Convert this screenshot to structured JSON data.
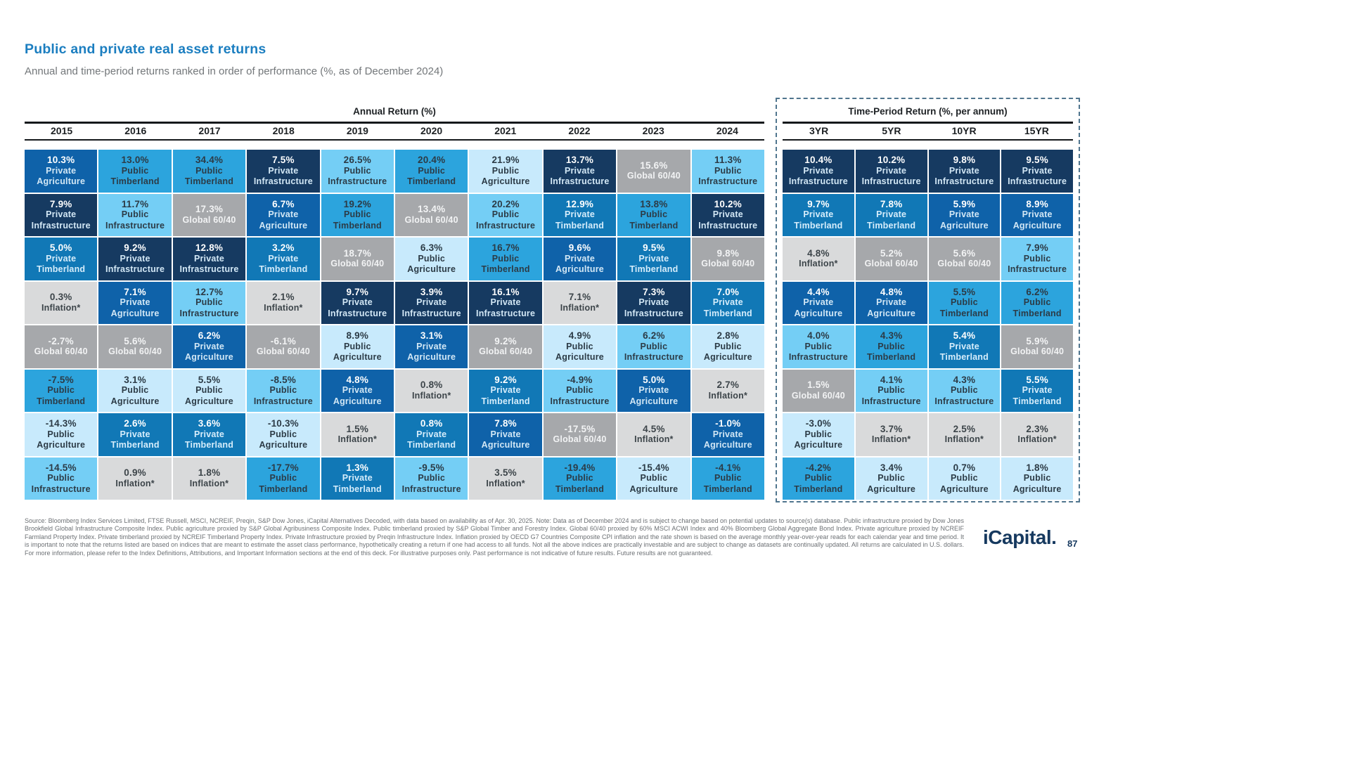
{
  "title": "Public and private real asset returns",
  "subtitle": "Annual and time-period returns ranked in order of performance (%, as of December 2024)",
  "annual_section_label": "Annual Return (%)",
  "time_section_label": "Time-Period Return (%, per annum)",
  "asset_classes": {
    "private_infrastructure": {
      "label": "Private Infrastructure",
      "bg": "#163a61",
      "val_color": "#ffffff",
      "name_color": "#d2e7f5"
    },
    "private_agriculture": {
      "label": "Private Agriculture",
      "bg": "#0f62a9",
      "val_color": "#ffffff",
      "name_color": "#d2e7f5"
    },
    "private_timberland": {
      "label": "Private Timberland",
      "bg": "#1178b6",
      "val_color": "#ffffff",
      "name_color": "#d6edfb"
    },
    "public_timberland": {
      "label": "Public Timberland",
      "bg": "#2ca4dd",
      "val_color": "#2c3b46",
      "name_color": "#2c3b46"
    },
    "public_infrastructure": {
      "label": "Public Infrastructure",
      "bg": "#74cef5",
      "val_color": "#2c3b46",
      "name_color": "#2c3b46"
    },
    "public_agriculture": {
      "label": "Public Agriculture",
      "bg": "#c8eafc",
      "val_color": "#2c3b46",
      "name_color": "#2c3b46"
    },
    "global_6040": {
      "label": "Global 60/40",
      "bg": "#a6a8ab",
      "val_color": "#f2f3f4",
      "name_color": "#f2f3f4"
    },
    "inflation": {
      "label": "Inflation*",
      "bg": "#d9dadb",
      "val_color": "#3c4449",
      "name_color": "#3c4449"
    }
  },
  "chart_data": {
    "type": "table",
    "title": "Public and private real asset returns",
    "subtitle": "Annual and time-period returns ranked in order of performance (%, as of December 2024)",
    "annual_columns": [
      {
        "period": "2015",
        "cells": [
          {
            "v": "10.3%",
            "k": "private_agriculture"
          },
          {
            "v": "7.9%",
            "k": "private_infrastructure"
          },
          {
            "v": "5.0%",
            "k": "private_timberland"
          },
          {
            "v": "0.3%",
            "k": "inflation"
          },
          {
            "v": "-2.7%",
            "k": "global_6040"
          },
          {
            "v": "-7.5%",
            "k": "public_timberland"
          },
          {
            "v": "-14.3%",
            "k": "public_agriculture"
          },
          {
            "v": "-14.5%",
            "k": "public_infrastructure"
          }
        ]
      },
      {
        "period": "2016",
        "cells": [
          {
            "v": "13.0%",
            "k": "public_timberland"
          },
          {
            "v": "11.7%",
            "k": "public_infrastructure"
          },
          {
            "v": "9.2%",
            "k": "private_infrastructure"
          },
          {
            "v": "7.1%",
            "k": "private_agriculture"
          },
          {
            "v": "5.6%",
            "k": "global_6040"
          },
          {
            "v": "3.1%",
            "k": "public_agriculture"
          },
          {
            "v": "2.6%",
            "k": "private_timberland"
          },
          {
            "v": "0.9%",
            "k": "inflation"
          }
        ]
      },
      {
        "period": "2017",
        "cells": [
          {
            "v": "34.4%",
            "k": "public_timberland"
          },
          {
            "v": "17.3%",
            "k": "global_6040"
          },
          {
            "v": "12.8%",
            "k": "private_infrastructure"
          },
          {
            "v": "12.7%",
            "k": "public_infrastructure"
          },
          {
            "v": "6.2%",
            "k": "private_agriculture"
          },
          {
            "v": "5.5%",
            "k": "public_agriculture"
          },
          {
            "v": "3.6%",
            "k": "private_timberland"
          },
          {
            "v": "1.8%",
            "k": "inflation"
          }
        ]
      },
      {
        "period": "2018",
        "cells": [
          {
            "v": "7.5%",
            "k": "private_infrastructure"
          },
          {
            "v": "6.7%",
            "k": "private_agriculture"
          },
          {
            "v": "3.2%",
            "k": "private_timberland"
          },
          {
            "v": "2.1%",
            "k": "inflation"
          },
          {
            "v": "-6.1%",
            "k": "global_6040"
          },
          {
            "v": "-8.5%",
            "k": "public_infrastructure"
          },
          {
            "v": "-10.3%",
            "k": "public_agriculture"
          },
          {
            "v": "-17.7%",
            "k": "public_timberland"
          }
        ]
      },
      {
        "period": "2019",
        "cells": [
          {
            "v": "26.5%",
            "k": "public_infrastructure"
          },
          {
            "v": "19.2%",
            "k": "public_timberland"
          },
          {
            "v": "18.7%",
            "k": "global_6040"
          },
          {
            "v": "9.7%",
            "k": "private_infrastructure"
          },
          {
            "v": "8.9%",
            "k": "public_agriculture"
          },
          {
            "v": "4.8%",
            "k": "private_agriculture"
          },
          {
            "v": "1.5%",
            "k": "inflation"
          },
          {
            "v": "1.3%",
            "k": "private_timberland"
          }
        ]
      },
      {
        "period": "2020",
        "cells": [
          {
            "v": "20.4%",
            "k": "public_timberland"
          },
          {
            "v": "13.4%",
            "k": "global_6040"
          },
          {
            "v": "6.3%",
            "k": "public_agriculture"
          },
          {
            "v": "3.9%",
            "k": "private_infrastructure"
          },
          {
            "v": "3.1%",
            "k": "private_agriculture"
          },
          {
            "v": "0.8%",
            "k": "inflation"
          },
          {
            "v": "0.8%",
            "k": "private_timberland"
          },
          {
            "v": "-9.5%",
            "k": "public_infrastructure"
          }
        ]
      },
      {
        "period": "2021",
        "cells": [
          {
            "v": "21.9%",
            "k": "public_agriculture"
          },
          {
            "v": "20.2%",
            "k": "public_infrastructure"
          },
          {
            "v": "16.7%",
            "k": "public_timberland"
          },
          {
            "v": "16.1%",
            "k": "private_infrastructure"
          },
          {
            "v": "9.2%",
            "k": "global_6040"
          },
          {
            "v": "9.2%",
            "k": "private_timberland"
          },
          {
            "v": "7.8%",
            "k": "private_agriculture"
          },
          {
            "v": "3.5%",
            "k": "inflation"
          }
        ]
      },
      {
        "period": "2022",
        "cells": [
          {
            "v": "13.7%",
            "k": "private_infrastructure"
          },
          {
            "v": "12.9%",
            "k": "private_timberland"
          },
          {
            "v": "9.6%",
            "k": "private_agriculture"
          },
          {
            "v": "7.1%",
            "k": "inflation"
          },
          {
            "v": "4.9%",
            "k": "public_agriculture"
          },
          {
            "v": "-4.9%",
            "k": "public_infrastructure"
          },
          {
            "v": "-17.5%",
            "k": "global_6040"
          },
          {
            "v": "-19.4%",
            "k": "public_timberland"
          }
        ]
      },
      {
        "period": "2023",
        "cells": [
          {
            "v": "15.6%",
            "k": "global_6040"
          },
          {
            "v": "13.8%",
            "k": "public_timberland"
          },
          {
            "v": "9.5%",
            "k": "private_timberland"
          },
          {
            "v": "7.3%",
            "k": "private_infrastructure"
          },
          {
            "v": "6.2%",
            "k": "public_infrastructure"
          },
          {
            "v": "5.0%",
            "k": "private_agriculture"
          },
          {
            "v": "4.5%",
            "k": "inflation"
          },
          {
            "v": "-15.4%",
            "k": "public_agriculture"
          }
        ]
      },
      {
        "period": "2024",
        "cells": [
          {
            "v": "11.3%",
            "k": "public_infrastructure"
          },
          {
            "v": "10.2%",
            "k": "private_infrastructure"
          },
          {
            "v": "9.8%",
            "k": "global_6040"
          },
          {
            "v": "7.0%",
            "k": "private_timberland"
          },
          {
            "v": "2.8%",
            "k": "public_agriculture"
          },
          {
            "v": "2.7%",
            "k": "inflation"
          },
          {
            "v": "-1.0%",
            "k": "private_agriculture"
          },
          {
            "v": "-4.1%",
            "k": "public_timberland"
          }
        ]
      }
    ],
    "time_period_columns": [
      {
        "period": "3YR",
        "cells": [
          {
            "v": "10.4%",
            "k": "private_infrastructure"
          },
          {
            "v": "9.7%",
            "k": "private_timberland"
          },
          {
            "v": "4.8%",
            "k": "inflation"
          },
          {
            "v": "4.4%",
            "k": "private_agriculture"
          },
          {
            "v": "4.0%",
            "k": "public_infrastructure"
          },
          {
            "v": "1.5%",
            "k": "global_6040"
          },
          {
            "v": "-3.0%",
            "k": "public_agriculture"
          },
          {
            "v": "-4.2%",
            "k": "public_timberland"
          }
        ]
      },
      {
        "period": "5YR",
        "cells": [
          {
            "v": "10.2%",
            "k": "private_infrastructure"
          },
          {
            "v": "7.8%",
            "k": "private_timberland"
          },
          {
            "v": "5.2%",
            "k": "global_6040"
          },
          {
            "v": "4.8%",
            "k": "private_agriculture"
          },
          {
            "v": "4.3%",
            "k": "public_timberland"
          },
          {
            "v": "4.1%",
            "k": "public_infrastructure"
          },
          {
            "v": "3.7%",
            "k": "inflation"
          },
          {
            "v": "3.4%",
            "k": "public_agriculture"
          }
        ]
      },
      {
        "period": "10YR",
        "cells": [
          {
            "v": "9.8%",
            "k": "private_infrastructure"
          },
          {
            "v": "5.9%",
            "k": "private_agriculture"
          },
          {
            "v": "5.6%",
            "k": "global_6040"
          },
          {
            "v": "5.5%",
            "k": "public_timberland"
          },
          {
            "v": "5.4%",
            "k": "private_timberland"
          },
          {
            "v": "4.3%",
            "k": "public_infrastructure"
          },
          {
            "v": "2.5%",
            "k": "inflation"
          },
          {
            "v": "0.7%",
            "k": "public_agriculture"
          }
        ]
      },
      {
        "period": "15YR",
        "cells": [
          {
            "v": "9.5%",
            "k": "private_infrastructure"
          },
          {
            "v": "8.9%",
            "k": "private_agriculture"
          },
          {
            "v": "7.9%",
            "k": "public_infrastructure"
          },
          {
            "v": "6.2%",
            "k": "public_timberland"
          },
          {
            "v": "5.9%",
            "k": "global_6040"
          },
          {
            "v": "5.5%",
            "k": "private_timberland"
          },
          {
            "v": "2.3%",
            "k": "inflation"
          },
          {
            "v": "1.8%",
            "k": "public_agriculture"
          }
        ]
      }
    ]
  },
  "footer": {
    "text": "Source: Bloomberg Index Services Limited, FTSE Russell, MSCI, NCREIF, Preqin, S&P Dow Jones, iCapital Alternatives Decoded, with data based on availability as of Apr. 30, 2025. Note: Data as of December 2024 and is subject to change based on potential updates to source(s) database. Public infrastructure proxied by Dow Jones Brookfield Global Infrastructure Composite Index. Public agriculture proxied by S&P Global Agribusiness Composite Index. Public timberland proxied by S&P Global Timber and Forestry Index. Global 60/40 proxied by 60% MSCI ACWI Index and 40% Bloomberg Global Aggregate Bond Index. Private agriculture proxied by NCREIF Farmland Property Index. Private timberland proxied by NCREIF Timberland Property Index. Private Infrastructure proxied by Preqin Infrastructure Index. Inflation proxied by OECD G7 Countries Composite CPI inflation and the rate shown is based on the average monthly year-over-year reads for each calendar year and time period. It is important to note that the returns listed are based on indices that are meant to estimate the asset class performance, hypothetically creating a return if one had access to all funds. Not all the above indices are practically investable and are subject to change as datasets are continually updated. All returns are calculated in U.S. dollars. For more information, please refer to the Index Definitions, Attributions, and Important Information sections at the end of this deck. For illustrative purposes only. Past performance is not indicative of future results. Future results are not guaranteed."
  },
  "logo": {
    "text": "iCapital.",
    "page": "87"
  }
}
